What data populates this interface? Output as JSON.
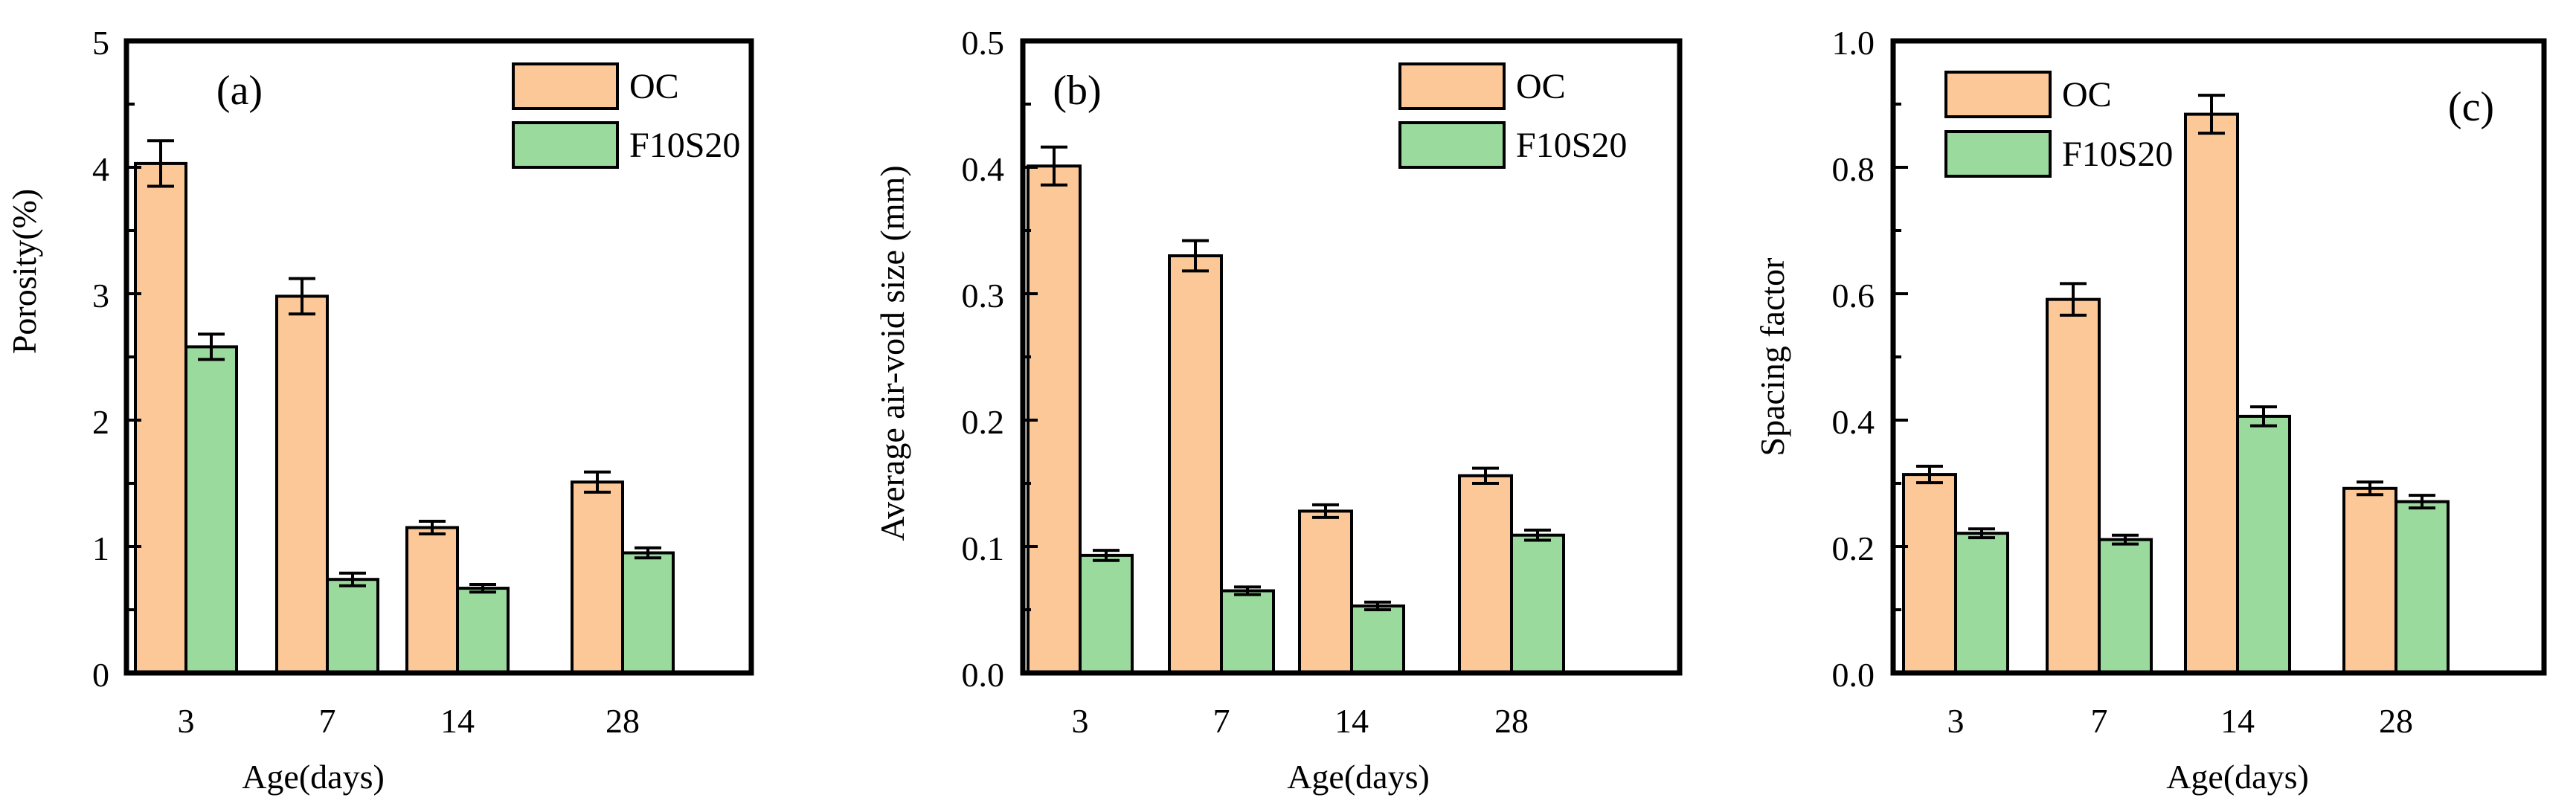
{
  "chart_data": [
    {
      "type": "bar",
      "panel_label": "(a)",
      "categories": [
        "3",
        "7",
        "14",
        "28"
      ],
      "series": [
        {
          "name": "OC",
          "color": "#FCC897",
          "values": [
            4.03,
            2.98,
            1.15,
            1.51
          ],
          "errors": [
            0.18,
            0.14,
            0.05,
            0.08
          ]
        },
        {
          "name": "F10S20",
          "color": "#9BDA9D",
          "values": [
            2.58,
            0.74,
            0.67,
            0.95
          ],
          "errors": [
            0.1,
            0.05,
            0.03,
            0.04
          ]
        }
      ],
      "xlabel": "Age(days)",
      "ylabel": "Porosity(%)",
      "ylim": [
        0,
        5
      ],
      "yticks": [
        0,
        1,
        2,
        3,
        4,
        5
      ],
      "ytick_labels": [
        "0",
        "1",
        "2",
        "3",
        "4",
        "5"
      ],
      "legend_position": "top-right"
    },
    {
      "type": "bar",
      "panel_label": "(b)",
      "categories": [
        "3",
        "7",
        "14",
        "28"
      ],
      "series": [
        {
          "name": "OC",
          "color": "#FCC897",
          "values": [
            0.401,
            0.33,
            0.128,
            0.156
          ],
          "errors": [
            0.015,
            0.012,
            0.005,
            0.006
          ]
        },
        {
          "name": "F10S20",
          "color": "#9BDA9D",
          "values": [
            0.093,
            0.065,
            0.053,
            0.109
          ],
          "errors": [
            0.004,
            0.003,
            0.003,
            0.004
          ]
        }
      ],
      "xlabel": "Age(days)",
      "ylabel": "Average air-void size (mm)",
      "ylim": [
        0,
        0.5
      ],
      "yticks": [
        0,
        0.1,
        0.2,
        0.3,
        0.4,
        0.5
      ],
      "ytick_labels": [
        "0.0",
        "0.1",
        "0.2",
        "0.3",
        "0.4",
        "0.5"
      ],
      "legend_position": "top-right"
    },
    {
      "type": "bar",
      "panel_label": "(c)",
      "categories": [
        "3",
        "7",
        "14",
        "28"
      ],
      "series": [
        {
          "name": "OC",
          "color": "#FCC897",
          "values": [
            0.314,
            0.591,
            0.884,
            0.292
          ],
          "errors": [
            0.013,
            0.025,
            0.03,
            0.01
          ]
        },
        {
          "name": "F10S20",
          "color": "#9BDA9D",
          "values": [
            0.221,
            0.211,
            0.406,
            0.271
          ],
          "errors": [
            0.007,
            0.007,
            0.015,
            0.01
          ]
        }
      ],
      "xlabel": "Age(days)",
      "ylabel": "Spacing factor",
      "ylim": [
        0,
        1
      ],
      "yticks": [
        0,
        0.2,
        0.4,
        0.6,
        0.8,
        1
      ],
      "ytick_labels": [
        "0.0",
        "0.2",
        "0.4",
        "0.6",
        "0.8",
        "1.0"
      ],
      "legend_position": "top-left"
    }
  ]
}
